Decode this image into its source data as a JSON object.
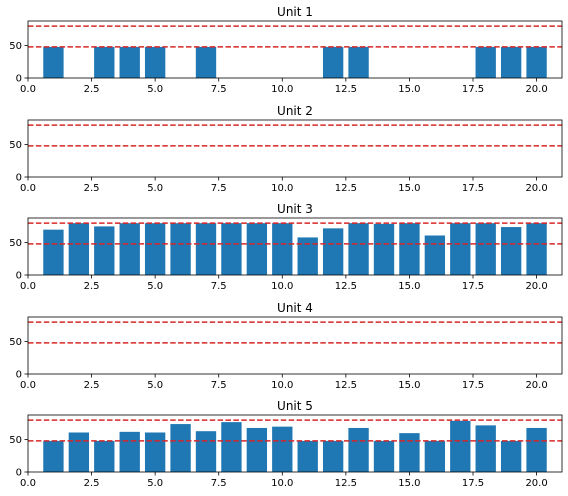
{
  "chart_data": [
    {
      "type": "bar",
      "title": "Unit 1",
      "x": [
        1,
        2,
        3,
        4,
        5,
        6,
        7,
        8,
        9,
        10,
        11,
        12,
        13,
        14,
        15,
        16,
        17,
        18,
        19,
        20
      ],
      "values": [
        48,
        0,
        48,
        48,
        48,
        0,
        48,
        0,
        0,
        0,
        0,
        48,
        48,
        0,
        0,
        0,
        0,
        48,
        48,
        48
      ],
      "xlim": [
        0,
        21
      ],
      "ylim": [
        0,
        88
      ],
      "xticks": [
        0.0,
        2.5,
        5.0,
        7.5,
        10.0,
        12.5,
        15.0,
        17.5,
        20.0
      ],
      "xtick_labels": [
        "0.0",
        "2.5",
        "5.0",
        "7.5",
        "10.0",
        "12.5",
        "15.0",
        "17.5",
        "20.0"
      ],
      "yticks": [
        0,
        50
      ],
      "ytick_labels": [
        "0",
        "50"
      ],
      "hlines": [
        48,
        80
      ],
      "bar_color": "#1f77b4",
      "line_color": "#d62728"
    },
    {
      "type": "bar",
      "title": "Unit 2",
      "x": [
        1,
        2,
        3,
        4,
        5,
        6,
        7,
        8,
        9,
        10,
        11,
        12,
        13,
        14,
        15,
        16,
        17,
        18,
        19,
        20
      ],
      "values": [
        0,
        0,
        0,
        0,
        0,
        0,
        0,
        0,
        0,
        0,
        0,
        0,
        0,
        0,
        0,
        0,
        0,
        0,
        0,
        0
      ],
      "xlim": [
        0,
        21
      ],
      "ylim": [
        0,
        88
      ],
      "xticks": [
        0.0,
        2.5,
        5.0,
        7.5,
        10.0,
        12.5,
        15.0,
        17.5,
        20.0
      ],
      "xtick_labels": [
        "0.0",
        "2.5",
        "5.0",
        "7.5",
        "10.0",
        "12.5",
        "15.0",
        "17.5",
        "20.0"
      ],
      "yticks": [
        0,
        50
      ],
      "ytick_labels": [
        "0",
        "50"
      ],
      "hlines": [
        48,
        80
      ],
      "bar_color": "#1f77b4",
      "line_color": "#d62728"
    },
    {
      "type": "bar",
      "title": "Unit 3",
      "x": [
        1,
        2,
        3,
        4,
        5,
        6,
        7,
        8,
        9,
        10,
        11,
        12,
        13,
        14,
        15,
        16,
        17,
        18,
        19,
        20
      ],
      "values": [
        70,
        80,
        75,
        80,
        80,
        80,
        80,
        80,
        80,
        80,
        58,
        72,
        80,
        79,
        80,
        61,
        80,
        80,
        74,
        80
      ],
      "xlim": [
        0,
        21
      ],
      "ylim": [
        0,
        88
      ],
      "xticks": [
        0.0,
        2.5,
        5.0,
        7.5,
        10.0,
        12.5,
        15.0,
        17.5,
        20.0
      ],
      "xtick_labels": [
        "0.0",
        "2.5",
        "5.0",
        "7.5",
        "10.0",
        "12.5",
        "15.0",
        "17.5",
        "20.0"
      ],
      "yticks": [
        0,
        50
      ],
      "ytick_labels": [
        "0",
        "50"
      ],
      "hlines": [
        48,
        80
      ],
      "bar_color": "#1f77b4",
      "line_color": "#d62728"
    },
    {
      "type": "bar",
      "title": "Unit 4",
      "x": [
        1,
        2,
        3,
        4,
        5,
        6,
        7,
        8,
        9,
        10,
        11,
        12,
        13,
        14,
        15,
        16,
        17,
        18,
        19,
        20
      ],
      "values": [
        0,
        0,
        0,
        0,
        0,
        0,
        0,
        0,
        0,
        0,
        0,
        0,
        0,
        0,
        0,
        0,
        0,
        0,
        0,
        0
      ],
      "xlim": [
        0,
        21
      ],
      "ylim": [
        0,
        88
      ],
      "xticks": [
        0.0,
        2.5,
        5.0,
        7.5,
        10.0,
        12.5,
        15.0,
        17.5,
        20.0
      ],
      "xtick_labels": [
        "0.0",
        "2.5",
        "5.0",
        "7.5",
        "10.0",
        "12.5",
        "15.0",
        "17.5",
        "20.0"
      ],
      "yticks": [
        0,
        50
      ],
      "ytick_labels": [
        "0",
        "50"
      ],
      "hlines": [
        48,
        80
      ],
      "bar_color": "#1f77b4",
      "line_color": "#d62728"
    },
    {
      "type": "bar",
      "title": "Unit 5",
      "x": [
        1,
        2,
        3,
        4,
        5,
        6,
        7,
        8,
        9,
        10,
        11,
        12,
        13,
        14,
        15,
        16,
        17,
        18,
        19,
        20
      ],
      "values": [
        48,
        61,
        48,
        62,
        61,
        74,
        63,
        77,
        68,
        70,
        48,
        48,
        68,
        48,
        60,
        48,
        79,
        72,
        48,
        68
      ],
      "xlim": [
        0,
        21
      ],
      "ylim": [
        0,
        88
      ],
      "xticks": [
        0.0,
        2.5,
        5.0,
        7.5,
        10.0,
        12.5,
        15.0,
        17.5,
        20.0
      ],
      "xtick_labels": [
        "0.0",
        "2.5",
        "5.0",
        "7.5",
        "10.0",
        "12.5",
        "15.0",
        "17.5",
        "20.0"
      ],
      "yticks": [
        0,
        50
      ],
      "ytick_labels": [
        "0",
        "50"
      ],
      "hlines": [
        48,
        80
      ],
      "bar_color": "#1f77b4",
      "line_color": "#d62728"
    }
  ]
}
